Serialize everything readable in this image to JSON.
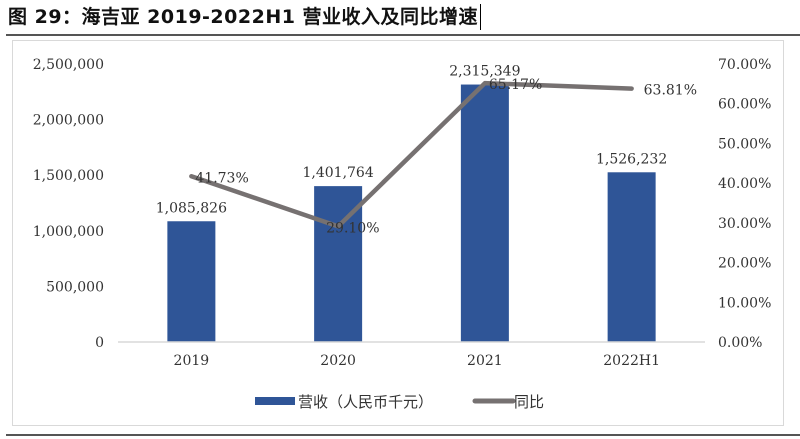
{
  "title": "图 29：海吉亚 2019-2022H1 营业收入及同比增速",
  "chart_data": {
    "type": "bar+line",
    "categories": [
      "2019",
      "2020",
      "2021",
      "2022H1"
    ],
    "series": [
      {
        "name": "营收（人民币千元）",
        "type": "bar",
        "axis": "left",
        "color": "#2f5597",
        "values": [
          1085826,
          1401764,
          2315349,
          1526232
        ],
        "labels": [
          "1,085,826",
          "1,401,764",
          "2,315,349",
          "1,526,232"
        ]
      },
      {
        "name": "同比",
        "type": "line",
        "axis": "right",
        "color": "#767171",
        "values": [
          41.73,
          29.1,
          65.17,
          63.81
        ],
        "labels": [
          "41.73%",
          "29.10%",
          "65.17%",
          "63.81%"
        ]
      }
    ],
    "left_axis": {
      "min": 0,
      "max": 2500000,
      "ticks": [
        "0",
        "500,000",
        "1,000,000",
        "1,500,000",
        "2,000,000",
        "2,500,000"
      ]
    },
    "right_axis": {
      "min": 0,
      "max": 70,
      "ticks": [
        "0.00%",
        "10.00%",
        "20.00%",
        "30.00%",
        "40.00%",
        "50.00%",
        "60.00%",
        "70.00%"
      ]
    },
    "grid": false,
    "legend": "bottom"
  }
}
